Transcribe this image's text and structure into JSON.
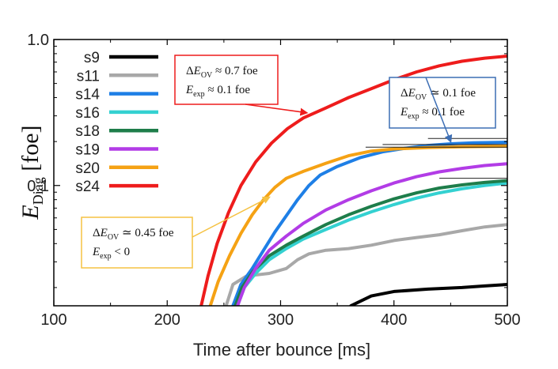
{
  "chart_data": {
    "type": "line",
    "title": "",
    "xlabel": "Time after bounce [ms]",
    "ylabel": {
      "main": "E",
      "sub": "Diag",
      "unit": "[foe]"
    },
    "xlim": [
      100,
      500
    ],
    "ylim": [
      0.015,
      1.0
    ],
    "yscale": "log",
    "x_ticks": [
      100,
      200,
      300,
      400,
      500
    ],
    "y_ticks": [
      {
        "value": 1.0,
        "label": "1.0"
      },
      {
        "value": 0.1,
        "label": "0.1"
      }
    ],
    "series": [
      {
        "name": "s9",
        "color": "#000000",
        "points": [
          [
            362,
            0.015
          ],
          [
            380,
            0.0175
          ],
          [
            400,
            0.0188
          ],
          [
            430,
            0.0195
          ],
          [
            460,
            0.02
          ],
          [
            480,
            0.0205
          ],
          [
            500,
            0.021
          ]
        ]
      },
      {
        "name": "s11",
        "color": "#a8a8a8",
        "points": [
          [
            252,
            0.015
          ],
          [
            258,
            0.021
          ],
          [
            270,
            0.024
          ],
          [
            290,
            0.025
          ],
          [
            305,
            0.027
          ],
          [
            315,
            0.031
          ],
          [
            325,
            0.034
          ],
          [
            340,
            0.036
          ],
          [
            360,
            0.037
          ],
          [
            380,
            0.039
          ],
          [
            400,
            0.042
          ],
          [
            420,
            0.044
          ],
          [
            440,
            0.046
          ],
          [
            460,
            0.049
          ],
          [
            480,
            0.052
          ],
          [
            500,
            0.054
          ]
        ]
      },
      {
        "name": "s14",
        "color": "#1e7fe6",
        "points": [
          [
            258,
            0.015
          ],
          [
            265,
            0.021
          ],
          [
            275,
            0.027
          ],
          [
            285,
            0.036
          ],
          [
            295,
            0.048
          ],
          [
            305,
            0.062
          ],
          [
            315,
            0.08
          ],
          [
            325,
            0.1
          ],
          [
            335,
            0.118
          ],
          [
            350,
            0.135
          ],
          [
            370,
            0.155
          ],
          [
            390,
            0.17
          ],
          [
            410,
            0.18
          ],
          [
            430,
            0.188
          ],
          [
            450,
            0.193
          ],
          [
            470,
            0.196
          ],
          [
            500,
            0.198
          ]
        ]
      },
      {
        "name": "s16",
        "color": "#34d1d1",
        "points": [
          [
            262,
            0.015
          ],
          [
            268,
            0.02
          ],
          [
            278,
            0.025
          ],
          [
            290,
            0.031
          ],
          [
            305,
            0.037
          ],
          [
            320,
            0.043
          ],
          [
            340,
            0.05
          ],
          [
            360,
            0.058
          ],
          [
            380,
            0.066
          ],
          [
            400,
            0.074
          ],
          [
            420,
            0.082
          ],
          [
            440,
            0.089
          ],
          [
            460,
            0.095
          ],
          [
            480,
            0.1
          ],
          [
            500,
            0.104
          ]
        ]
      },
      {
        "name": "s18",
        "color": "#1e7d4a",
        "points": [
          [
            260,
            0.015
          ],
          [
            266,
            0.02
          ],
          [
            276,
            0.026
          ],
          [
            290,
            0.033
          ],
          [
            305,
            0.039
          ],
          [
            320,
            0.045
          ],
          [
            340,
            0.054
          ],
          [
            360,
            0.063
          ],
          [
            380,
            0.072
          ],
          [
            400,
            0.081
          ],
          [
            420,
            0.089
          ],
          [
            440,
            0.096
          ],
          [
            460,
            0.101
          ],
          [
            480,
            0.105
          ],
          [
            500,
            0.108
          ]
        ]
      },
      {
        "name": "s19",
        "color": "#b23ce6",
        "points": [
          [
            262,
            0.015
          ],
          [
            268,
            0.02
          ],
          [
            278,
            0.027
          ],
          [
            290,
            0.036
          ],
          [
            305,
            0.045
          ],
          [
            320,
            0.055
          ],
          [
            340,
            0.068
          ],
          [
            360,
            0.08
          ],
          [
            380,
            0.092
          ],
          [
            400,
            0.104
          ],
          [
            420,
            0.115
          ],
          [
            440,
            0.124
          ],
          [
            460,
            0.131
          ],
          [
            480,
            0.137
          ],
          [
            500,
            0.141
          ]
        ]
      },
      {
        "name": "s20",
        "color": "#f5a214",
        "points": [
          [
            238,
            0.015
          ],
          [
            245,
            0.022
          ],
          [
            255,
            0.033
          ],
          [
            265,
            0.047
          ],
          [
            275,
            0.063
          ],
          [
            285,
            0.08
          ],
          [
            295,
            0.097
          ],
          [
            305,
            0.112
          ],
          [
            320,
            0.125
          ],
          [
            340,
            0.142
          ],
          [
            360,
            0.16
          ],
          [
            380,
            0.172
          ],
          [
            400,
            0.178
          ],
          [
            430,
            0.182
          ],
          [
            460,
            0.184
          ],
          [
            500,
            0.186
          ]
        ]
      },
      {
        "name": "s24",
        "color": "#ee1c1c",
        "points": [
          [
            230,
            0.015
          ],
          [
            236,
            0.024
          ],
          [
            244,
            0.04
          ],
          [
            254,
            0.065
          ],
          [
            265,
            0.1
          ],
          [
            278,
            0.145
          ],
          [
            292,
            0.195
          ],
          [
            306,
            0.245
          ],
          [
            320,
            0.29
          ],
          [
            340,
            0.34
          ],
          [
            360,
            0.4
          ],
          [
            380,
            0.46
          ],
          [
            400,
            0.53
          ],
          [
            420,
            0.6
          ],
          [
            440,
            0.66
          ],
          [
            460,
            0.71
          ],
          [
            480,
            0.745
          ],
          [
            500,
            0.77
          ]
        ]
      }
    ],
    "reference_lines": [
      {
        "x": [
          375,
          500
        ],
        "y": 0.183
      },
      {
        "x": [
          390,
          500
        ],
        "y": 0.191
      },
      {
        "x": [
          430,
          500
        ],
        "y": 0.21
      },
      {
        "x": [
          440,
          500
        ],
        "y": 0.112
      }
    ],
    "annotations": [
      {
        "id": "s24",
        "border": "#ee1c1c",
        "line1": {
          "pre": "Δ",
          "var": "E",
          "sub": "OV",
          "rel": "≈",
          "val": "0.7",
          "unit": "foe"
        },
        "line2": {
          "var": "E",
          "sub": "exp",
          "rel": "≈",
          "val": "0.1",
          "unit": "foe"
        },
        "arrow_to": [
          323,
          0.315
        ]
      },
      {
        "id": "s14",
        "border": "#3c6eb4",
        "line1": {
          "pre": "Δ",
          "var": "E",
          "sub": "OV",
          "rel": "≃",
          "val": "0.1",
          "unit": "foe"
        },
        "line2": {
          "var": "E",
          "sub": "exp",
          "rel": "≈",
          "val": "0.1",
          "unit": "foe"
        },
        "arrow_to": [
          450,
          0.2
        ]
      },
      {
        "id": "s20",
        "border": "#f5c242",
        "line1": {
          "pre": "Δ",
          "var": "E",
          "sub": "OV",
          "rel": "≃",
          "val": "0.45",
          "unit": "foe"
        },
        "line2": {
          "var": "E",
          "sub": "exp",
          "rel": "<",
          "val": "0",
          "unit": ""
        },
        "arrow_to": [
          290,
          0.083
        ]
      }
    ]
  }
}
